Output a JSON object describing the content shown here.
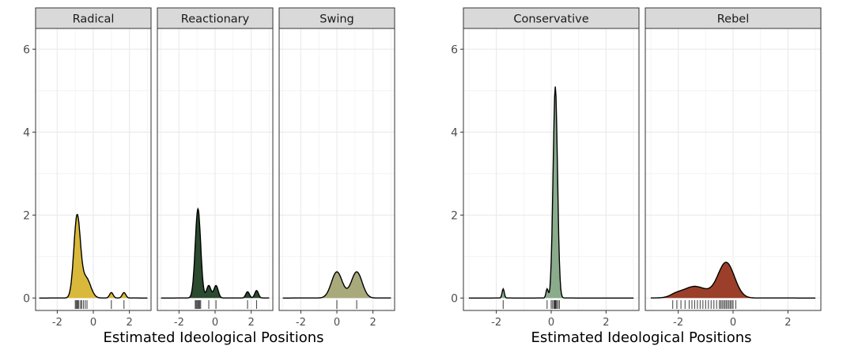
{
  "chart_data": {
    "type": "area",
    "xlabel": "Estimated Ideological Positions",
    "xlim": [
      -3.2,
      3.2
    ],
    "ylim": [
      -0.3,
      6.5
    ],
    "xticks": [
      -2,
      0,
      2
    ],
    "yticks": [
      0,
      2,
      4,
      6
    ],
    "xtick_labels": [
      "-2",
      "0",
      "2"
    ],
    "ytick_labels": [
      "0",
      "2",
      "4",
      "6"
    ],
    "grid": true,
    "legend": "none",
    "groups": [
      {
        "panels": [
          {
            "title": "Radical",
            "fill": "#d9b93b",
            "peaks": [
              [
                -0.9,
                1.95,
                0.18
              ],
              [
                -0.4,
                0.48,
                0.25
              ],
              [
                1.0,
                0.13,
                0.1
              ],
              [
                1.7,
                0.13,
                0.1
              ]
            ],
            "rug": [
              -1.0,
              -0.95,
              -0.9,
              -0.85,
              -0.8,
              -0.7,
              -0.65,
              -0.55,
              -0.45,
              -0.35,
              1.0,
              1.7
            ]
          },
          {
            "title": "Reactionary",
            "fill": "#2b4a30",
            "peaks": [
              [
                -0.95,
                2.15,
                0.15
              ],
              [
                -0.35,
                0.3,
                0.12
              ],
              [
                0.05,
                0.3,
                0.12
              ],
              [
                1.8,
                0.15,
                0.1
              ],
              [
                2.3,
                0.18,
                0.1
              ]
            ],
            "rug": [
              -1.1,
              -1.05,
              -1.0,
              -0.95,
              -0.9,
              -0.85,
              -0.8,
              -0.35,
              0.05,
              1.8,
              2.3
            ]
          },
          {
            "title": "Swing",
            "fill": "#a8aa7c",
            "peaks": [
              [
                0.0,
                0.63,
                0.3
              ],
              [
                1.1,
                0.63,
                0.3
              ]
            ],
            "rug": [
              0.0,
              1.1
            ]
          }
        ]
      },
      {
        "panels": [
          {
            "title": "Conservative",
            "fill": "#8aac8c",
            "peaks": [
              [
                0.15,
                5.1,
                0.08
              ],
              [
                -1.75,
                0.22,
                0.04
              ],
              [
                -0.15,
                0.22,
                0.04
              ]
            ],
            "rug": [
              -1.75,
              -0.15,
              0.0,
              0.05,
              0.1,
              0.13,
              0.15,
              0.17,
              0.2,
              0.25,
              0.3
            ]
          },
          {
            "title": "Rebel",
            "fill": "#9b3f2a",
            "peaks": [
              [
                -0.25,
                0.85,
                0.3
              ],
              [
                -1.4,
                0.28,
                0.45
              ],
              [
                -2.1,
                0.05,
                0.2
              ]
            ],
            "rug": [
              -2.2,
              -2.05,
              -1.9,
              -1.75,
              -1.6,
              -1.5,
              -1.4,
              -1.3,
              -1.2,
              -1.1,
              -1.0,
              -0.9,
              -0.8,
              -0.7,
              -0.6,
              -0.5,
              -0.45,
              -0.4,
              -0.35,
              -0.3,
              -0.25,
              -0.2,
              -0.15,
              -0.1,
              -0.05,
              0.0,
              0.1
            ]
          }
        ]
      }
    ]
  }
}
